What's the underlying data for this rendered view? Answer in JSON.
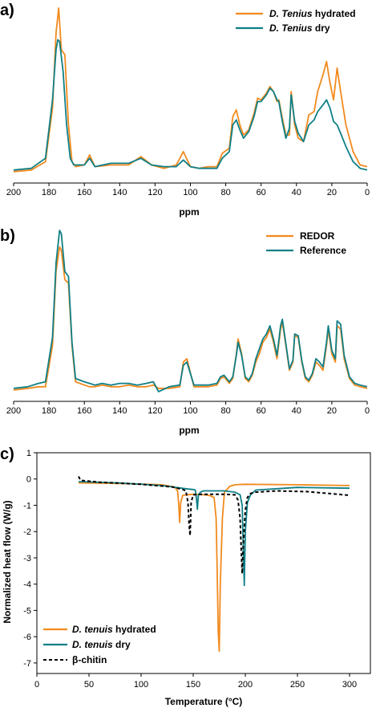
{
  "colors": {
    "orange": "#f28a1e",
    "teal": "#0f7f86",
    "black": "#000000"
  },
  "chart_data": [
    {
      "id": "a",
      "type": "line",
      "panel_label": "a)",
      "xlabel": "ppm",
      "xlim": [
        200,
        0
      ],
      "x_reversed": true,
      "x_ticks": [
        "200",
        "180",
        "160",
        "140",
        "120",
        "100",
        "80",
        "60",
        "40",
        "20",
        "0"
      ],
      "y_axis_visible": false,
      "legend_position": "top-right",
      "legend": [
        {
          "label_em": "D. Tenius",
          "label_rest": " hydrated",
          "color": "#f28a1e",
          "dash": false
        },
        {
          "label_em": "D. Tenius",
          "label_rest": " dry",
          "color": "#0f7f86",
          "dash": false
        }
      ],
      "series": [
        {
          "name": "D. Tenius hydrated",
          "color": "#f28a1e",
          "x": [
            200,
            190,
            182,
            178,
            176,
            174.5,
            173,
            171,
            169,
            167,
            165,
            160,
            157,
            154,
            145,
            135,
            128,
            122,
            115,
            108,
            104,
            100,
            95,
            90,
            85,
            82,
            78,
            76,
            74,
            72,
            70,
            67,
            64,
            62,
            60,
            57,
            55,
            53,
            51,
            50,
            48,
            46,
            44,
            43,
            41,
            39,
            36,
            33,
            30,
            28,
            25,
            23,
            21,
            19,
            17,
            15,
            12,
            8,
            4,
            0
          ],
          "y": [
            0.02,
            0.03,
            0.08,
            0.4,
            0.85,
            1.0,
            0.75,
            0.72,
            0.3,
            0.08,
            0.05,
            0.06,
            0.12,
            0.05,
            0.06,
            0.06,
            0.11,
            0.06,
            0.04,
            0.06,
            0.14,
            0.05,
            0.04,
            0.05,
            0.05,
            0.13,
            0.16,
            0.35,
            0.39,
            0.3,
            0.24,
            0.27,
            0.37,
            0.46,
            0.45,
            0.49,
            0.53,
            0.5,
            0.44,
            0.45,
            0.34,
            0.24,
            0.24,
            0.5,
            0.3,
            0.22,
            0.2,
            0.36,
            0.38,
            0.5,
            0.6,
            0.68,
            0.55,
            0.45,
            0.64,
            0.5,
            0.3,
            0.14,
            0.06,
            0.05
          ]
        },
        {
          "name": "D. Tenius dry",
          "color": "#0f7f86",
          "x": [
            200,
            190,
            182,
            178,
            176,
            175,
            174,
            172,
            170,
            168,
            166,
            160,
            157,
            154,
            145,
            135,
            128,
            122,
            115,
            108,
            104,
            100,
            95,
            90,
            85,
            82,
            78,
            76,
            74,
            72,
            70,
            67,
            64,
            62,
            60,
            57,
            55,
            53,
            51,
            50,
            48,
            46,
            44,
            43,
            41,
            39,
            36,
            33,
            30,
            28,
            25,
            23,
            21,
            19,
            17,
            15,
            12,
            8,
            4,
            0
          ],
          "y": [
            0.03,
            0.04,
            0.1,
            0.45,
            0.75,
            0.81,
            0.8,
            0.62,
            0.3,
            0.1,
            0.06,
            0.06,
            0.1,
            0.05,
            0.07,
            0.07,
            0.1,
            0.06,
            0.05,
            0.05,
            0.09,
            0.05,
            0.04,
            0.04,
            0.04,
            0.1,
            0.14,
            0.3,
            0.33,
            0.27,
            0.22,
            0.26,
            0.35,
            0.44,
            0.44,
            0.48,
            0.52,
            0.5,
            0.45,
            0.44,
            0.32,
            0.22,
            0.28,
            0.48,
            0.32,
            0.25,
            0.2,
            0.3,
            0.33,
            0.38,
            0.42,
            0.45,
            0.4,
            0.32,
            0.3,
            0.25,
            0.17,
            0.08,
            0.04,
            0.03
          ]
        }
      ]
    },
    {
      "id": "b",
      "type": "line",
      "panel_label": "b)",
      "xlabel": "ppm",
      "xlim": [
        200,
        0
      ],
      "x_reversed": true,
      "x_ticks": [
        "200",
        "180",
        "160",
        "140",
        "120",
        "100",
        "80",
        "60",
        "40",
        "20",
        "0"
      ],
      "y_axis_visible": false,
      "legend_position": "top-right",
      "legend": [
        {
          "label_em": "",
          "label_rest": "REDOR",
          "color": "#f28a1e",
          "dash": false
        },
        {
          "label_em": "",
          "label_rest": "Reference",
          "color": "#0f7f86",
          "dash": false
        }
      ],
      "series": [
        {
          "name": "REDOR",
          "color": "#f28a1e",
          "x": [
            200,
            192,
            186,
            182,
            178,
            176,
            174,
            173,
            171,
            169,
            167,
            165,
            160,
            157,
            154,
            150,
            145,
            140,
            135,
            130,
            125,
            121,
            118,
            112,
            106,
            104,
            102,
            98,
            90,
            85,
            83,
            81,
            78,
            76,
            74,
            73,
            71,
            69,
            67,
            65,
            63,
            61,
            59,
            57,
            55,
            53,
            51,
            49,
            48,
            46,
            44,
            42,
            41,
            39,
            37,
            35,
            33,
            31,
            29,
            27,
            25,
            23,
            22,
            20,
            18,
            17,
            15,
            13,
            10,
            7,
            4,
            0
          ],
          "y": [
            0.03,
            0.04,
            0.05,
            0.05,
            0.3,
            0.75,
            0.9,
            0.88,
            0.7,
            0.68,
            0.3,
            0.08,
            0.06,
            0.05,
            0.05,
            0.06,
            0.05,
            0.05,
            0.06,
            0.05,
            0.05,
            0.06,
            0.04,
            0.04,
            0.05,
            0.2,
            0.22,
            0.05,
            0.05,
            0.06,
            0.1,
            0.11,
            0.07,
            0.1,
            0.25,
            0.34,
            0.25,
            0.1,
            0.08,
            0.12,
            0.2,
            0.25,
            0.32,
            0.35,
            0.4,
            0.32,
            0.22,
            0.4,
            0.44,
            0.3,
            0.15,
            0.2,
            0.36,
            0.35,
            0.2,
            0.1,
            0.08,
            0.12,
            0.2,
            0.18,
            0.15,
            0.3,
            0.4,
            0.25,
            0.2,
            0.42,
            0.4,
            0.22,
            0.1,
            0.06,
            0.05,
            0.04
          ]
        },
        {
          "name": "Reference",
          "color": "#0f7f86",
          "x": [
            200,
            192,
            186,
            182,
            178,
            176,
            174,
            173,
            171,
            169,
            167,
            165,
            160,
            157,
            154,
            150,
            145,
            140,
            135,
            130,
            125,
            121,
            118,
            112,
            106,
            104,
            102,
            98,
            90,
            85,
            83,
            81,
            78,
            76,
            74,
            73,
            71,
            69,
            67,
            65,
            63,
            61,
            59,
            57,
            55,
            53,
            51,
            49,
            48,
            46,
            44,
            42,
            41,
            39,
            37,
            35,
            33,
            31,
            29,
            27,
            25,
            23,
            22,
            20,
            18,
            17,
            15,
            13,
            10,
            7,
            4,
            0
          ],
          "y": [
            0.04,
            0.05,
            0.07,
            0.08,
            0.35,
            0.8,
            1.0,
            0.98,
            0.75,
            0.72,
            0.32,
            0.1,
            0.08,
            0.07,
            0.06,
            0.07,
            0.06,
            0.07,
            0.07,
            0.06,
            0.07,
            0.08,
            0.02,
            0.05,
            0.06,
            0.18,
            0.2,
            0.06,
            0.06,
            0.07,
            0.11,
            0.12,
            0.08,
            0.11,
            0.24,
            0.32,
            0.24,
            0.11,
            0.09,
            0.13,
            0.22,
            0.28,
            0.34,
            0.37,
            0.42,
            0.34,
            0.24,
            0.42,
            0.46,
            0.31,
            0.16,
            0.21,
            0.37,
            0.36,
            0.21,
            0.11,
            0.09,
            0.13,
            0.22,
            0.2,
            0.17,
            0.32,
            0.42,
            0.27,
            0.22,
            0.45,
            0.43,
            0.24,
            0.11,
            0.07,
            0.06,
            0.05
          ]
        }
      ]
    },
    {
      "id": "c",
      "type": "line",
      "panel_label": "c)",
      "xlabel": "Temperature (°C)",
      "ylabel": "Normalized heat flow (W/g)",
      "xlim": [
        0,
        320
      ],
      "ylim": [
        -7.4,
        1
      ],
      "x_reversed": false,
      "x_tick_values": [
        0,
        50,
        100,
        150,
        200,
        250,
        300
      ],
      "y_tick_values": [
        1,
        0,
        -1,
        -2,
        -3,
        -4,
        -5,
        -6,
        -7
      ],
      "y_axis_visible": true,
      "legend_position": "bottom-left",
      "legend": [
        {
          "label_em": "D. tenuis",
          "label_rest": " hydrated",
          "color": "#f28a1e",
          "dash": false
        },
        {
          "label_em": "D. tenuis",
          "label_rest": " dry",
          "color": "#0f7f86",
          "dash": false
        },
        {
          "label_em": "",
          "label_rest": "β-chitin",
          "color": "#000000",
          "dash": true
        }
      ],
      "series": [
        {
          "name": "D. tenuis hydrated",
          "color": "#f28a1e",
          "dash": false,
          "x": [
            40,
            80,
            120,
            132,
            135,
            136,
            137,
            138,
            140,
            150,
            160,
            165,
            170,
            172,
            173,
            174,
            175,
            176,
            178,
            180,
            185,
            190,
            200,
            250,
            300
          ],
          "y": [
            -0.15,
            -0.17,
            -0.22,
            -0.3,
            -0.45,
            -0.9,
            -1.65,
            -0.9,
            -0.62,
            -0.58,
            -0.6,
            -0.62,
            -0.7,
            -1.5,
            -3.5,
            -5.8,
            -6.55,
            -4.0,
            -1.5,
            -0.5,
            -0.28,
            -0.22,
            -0.2,
            -0.22,
            -0.25
          ]
        },
        {
          "name": "D. tenuis dry",
          "color": "#0f7f86",
          "dash": false,
          "x": [
            40,
            80,
            120,
            145,
            150,
            152,
            153,
            154,
            155,
            157,
            160,
            170,
            180,
            190,
            195,
            197,
            198,
            199,
            200,
            202,
            205,
            210,
            250,
            300
          ],
          "y": [
            -0.1,
            -0.15,
            -0.25,
            -0.38,
            -0.4,
            -0.42,
            -0.7,
            -1.15,
            -0.6,
            -0.5,
            -0.45,
            -0.45,
            -0.45,
            -0.5,
            -0.6,
            -1.0,
            -2.5,
            -4.05,
            -2.0,
            -0.9,
            -0.6,
            -0.42,
            -0.32,
            -0.35
          ]
        },
        {
          "name": "β-chitin",
          "color": "#000000",
          "dash": true,
          "x": [
            40,
            41,
            42,
            60,
            100,
            130,
            140,
            143,
            145,
            146,
            147,
            148,
            150,
            160,
            180,
            190,
            193,
            195,
            196,
            197,
            198,
            200,
            202,
            205,
            210,
            230,
            260,
            300
          ],
          "y": [
            0.1,
            0.02,
            -0.05,
            -0.12,
            -0.2,
            -0.3,
            -0.4,
            -0.45,
            -0.9,
            -1.7,
            -2.15,
            -0.9,
            -0.6,
            -0.58,
            -0.58,
            -0.6,
            -0.8,
            -1.5,
            -2.6,
            -3.6,
            -2.5,
            -1.2,
            -0.7,
            -0.55,
            -0.5,
            -0.45,
            -0.48,
            -0.62
          ]
        }
      ]
    }
  ]
}
